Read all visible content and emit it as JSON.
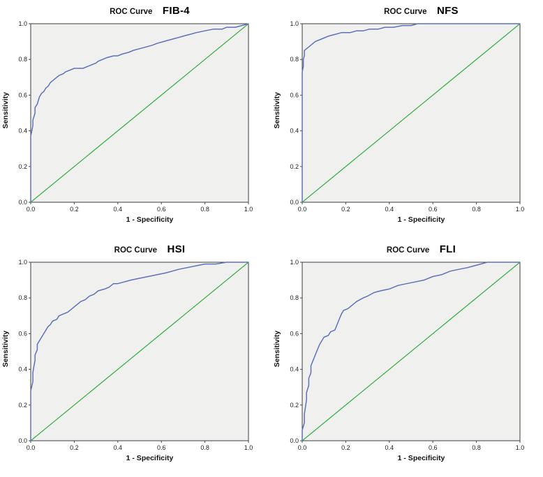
{
  "chart_data": [
    {
      "type": "line",
      "panel": "top-left",
      "title": "ROC Curve",
      "annotation": "FIB-4",
      "xlabel": "1 - Specificity",
      "ylabel": "Sensitivity",
      "xlim": [
        0,
        1
      ],
      "ylim": [
        0,
        1
      ],
      "xtick_labels": [
        "0.0",
        "0.2",
        "0.4",
        "0.6",
        "0.8",
        "1.0"
      ],
      "ytick_labels": [
        "0.0",
        "0.2",
        "0.4",
        "0.6",
        "0.8",
        "1.0"
      ],
      "grid": false,
      "legend": "none",
      "plot_bg": "#f0f0ee",
      "frame_color": "#3c3c3c",
      "series": [
        {
          "name": "ROC curve",
          "color": "#5d72b8",
          "width": 1.5,
          "points": [
            [
              0,
              0
            ],
            [
              0,
              0.37
            ],
            [
              0.005,
              0.4
            ],
            [
              0.01,
              0.43
            ],
            [
              0.01,
              0.46
            ],
            [
              0.015,
              0.48
            ],
            [
              0.02,
              0.5
            ],
            [
              0.02,
              0.53
            ],
            [
              0.03,
              0.55
            ],
            [
              0.035,
              0.57
            ],
            [
              0.04,
              0.59
            ],
            [
              0.05,
              0.61
            ],
            [
              0.06,
              0.62
            ],
            [
              0.07,
              0.64
            ],
            [
              0.08,
              0.65
            ],
            [
              0.09,
              0.67
            ],
            [
              0.1,
              0.68
            ],
            [
              0.12,
              0.7
            ],
            [
              0.13,
              0.71
            ],
            [
              0.15,
              0.72
            ],
            [
              0.16,
              0.73
            ],
            [
              0.18,
              0.74
            ],
            [
              0.2,
              0.75
            ],
            [
              0.24,
              0.75
            ],
            [
              0.26,
              0.76
            ],
            [
              0.28,
              0.77
            ],
            [
              0.3,
              0.78
            ],
            [
              0.31,
              0.79
            ],
            [
              0.33,
              0.8
            ],
            [
              0.35,
              0.81
            ],
            [
              0.38,
              0.82
            ],
            [
              0.4,
              0.82
            ],
            [
              0.42,
              0.83
            ],
            [
              0.45,
              0.84
            ],
            [
              0.47,
              0.85
            ],
            [
              0.5,
              0.86
            ],
            [
              0.53,
              0.87
            ],
            [
              0.56,
              0.88
            ],
            [
              0.58,
              0.89
            ],
            [
              0.61,
              0.9
            ],
            [
              0.64,
              0.91
            ],
            [
              0.67,
              0.92
            ],
            [
              0.7,
              0.93
            ],
            [
              0.73,
              0.94
            ],
            [
              0.76,
              0.95
            ],
            [
              0.8,
              0.96
            ],
            [
              0.84,
              0.97
            ],
            [
              0.88,
              0.97
            ],
            [
              0.9,
              0.98
            ],
            [
              0.94,
              0.98
            ],
            [
              0.97,
              0.99
            ],
            [
              1,
              1
            ]
          ]
        },
        {
          "name": "Reference line",
          "color": "#3faf4c",
          "width": 1.3,
          "points": [
            [
              0,
              0
            ],
            [
              1,
              1
            ]
          ]
        }
      ]
    },
    {
      "type": "line",
      "panel": "top-right",
      "title": "ROC Curve",
      "annotation": "NFS",
      "xlabel": "1 - Specificity",
      "ylabel": "Sensitivity",
      "xlim": [
        0,
        1
      ],
      "ylim": [
        0,
        1
      ],
      "xtick_labels": [
        "0.0",
        "0.2",
        "0.4",
        "0.6",
        "0.8",
        "1.0"
      ],
      "ytick_labels": [
        "0.0",
        "0.2",
        "0.4",
        "0.6",
        "0.8",
        "1.0"
      ],
      "grid": false,
      "legend": "none",
      "plot_bg": "#f0f0ee",
      "frame_color": "#3c3c3c",
      "series": [
        {
          "name": "ROC curve",
          "color": "#5d72b8",
          "width": 1.5,
          "points": [
            [
              0,
              0
            ],
            [
              0,
              0.73
            ],
            [
              0.005,
              0.76
            ],
            [
              0.005,
              0.8
            ],
            [
              0.01,
              0.82
            ],
            [
              0.01,
              0.85
            ],
            [
              0.02,
              0.86
            ],
            [
              0.03,
              0.87
            ],
            [
              0.04,
              0.88
            ],
            [
              0.05,
              0.89
            ],
            [
              0.06,
              0.9
            ],
            [
              0.08,
              0.91
            ],
            [
              0.1,
              0.92
            ],
            [
              0.12,
              0.93
            ],
            [
              0.15,
              0.94
            ],
            [
              0.18,
              0.95
            ],
            [
              0.22,
              0.95
            ],
            [
              0.25,
              0.96
            ],
            [
              0.28,
              0.96
            ],
            [
              0.31,
              0.97
            ],
            [
              0.35,
              0.97
            ],
            [
              0.38,
              0.98
            ],
            [
              0.42,
              0.98
            ],
            [
              0.46,
              0.99
            ],
            [
              0.5,
              0.99
            ],
            [
              0.53,
              1.0
            ],
            [
              0.7,
              1.0
            ],
            [
              0.85,
              1.0
            ],
            [
              1,
              1
            ]
          ]
        },
        {
          "name": "Reference line",
          "color": "#3faf4c",
          "width": 1.3,
          "points": [
            [
              0,
              0
            ],
            [
              1,
              1
            ]
          ]
        }
      ]
    },
    {
      "type": "line",
      "panel": "bottom-left",
      "title": "ROC Curve",
      "annotation": "HSI",
      "xlabel": "1 - Specificity",
      "ylabel": "Sensitivity",
      "xlim": [
        0,
        1
      ],
      "ylim": [
        0,
        1
      ],
      "xtick_labels": [
        "0.0",
        "0.2",
        "0.4",
        "0.6",
        "0.8",
        "1.0"
      ],
      "ytick_labels": [
        "0.0",
        "0.2",
        "0.4",
        "0.6",
        "0.8",
        "1.0"
      ],
      "grid": false,
      "legend": "none",
      "plot_bg": "#f0f0ee",
      "frame_color": "#3c3c3c",
      "series": [
        {
          "name": "ROC curve",
          "color": "#5d72b8",
          "width": 1.5,
          "points": [
            [
              0,
              0
            ],
            [
              0,
              0.28
            ],
            [
              0.01,
              0.33
            ],
            [
              0.01,
              0.38
            ],
            [
              0.015,
              0.42
            ],
            [
              0.02,
              0.45
            ],
            [
              0.02,
              0.48
            ],
            [
              0.03,
              0.51
            ],
            [
              0.03,
              0.54
            ],
            [
              0.04,
              0.56
            ],
            [
              0.05,
              0.58
            ],
            [
              0.06,
              0.6
            ],
            [
              0.07,
              0.62
            ],
            [
              0.08,
              0.64
            ],
            [
              0.09,
              0.65
            ],
            [
              0.1,
              0.67
            ],
            [
              0.12,
              0.68
            ],
            [
              0.13,
              0.7
            ],
            [
              0.15,
              0.71
            ],
            [
              0.17,
              0.72
            ],
            [
              0.19,
              0.74
            ],
            [
              0.21,
              0.76
            ],
            [
              0.23,
              0.78
            ],
            [
              0.25,
              0.79
            ],
            [
              0.27,
              0.81
            ],
            [
              0.29,
              0.82
            ],
            [
              0.31,
              0.84
            ],
            [
              0.34,
              0.85
            ],
            [
              0.36,
              0.86
            ],
            [
              0.38,
              0.88
            ],
            [
              0.4,
              0.88
            ],
            [
              0.43,
              0.89
            ],
            [
              0.46,
              0.9
            ],
            [
              0.5,
              0.91
            ],
            [
              0.54,
              0.92
            ],
            [
              0.58,
              0.93
            ],
            [
              0.62,
              0.94
            ],
            [
              0.65,
              0.95
            ],
            [
              0.68,
              0.96
            ],
            [
              0.72,
              0.97
            ],
            [
              0.76,
              0.98
            ],
            [
              0.8,
              0.99
            ],
            [
              0.85,
              0.99
            ],
            [
              0.9,
              1.0
            ],
            [
              1,
              1
            ]
          ]
        },
        {
          "name": "Reference line",
          "color": "#3faf4c",
          "width": 1.3,
          "points": [
            [
              0,
              0
            ],
            [
              1,
              1
            ]
          ]
        }
      ]
    },
    {
      "type": "line",
      "panel": "bottom-right",
      "title": "ROC Curve",
      "annotation": "FLI",
      "xlabel": "1 - Specificity",
      "ylabel": "Sensitivity",
      "xlim": [
        0,
        1
      ],
      "ylim": [
        0,
        1
      ],
      "xtick_labels": [
        "0.0",
        "0.2",
        "0.4",
        "0.6",
        "0.8",
        "1.0"
      ],
      "ytick_labels": [
        "0.0",
        "0.2",
        "0.4",
        "0.6",
        "0.8",
        "1.0"
      ],
      "grid": false,
      "legend": "none",
      "plot_bg": "#f0f0ee",
      "frame_color": "#3c3c3c",
      "series": [
        {
          "name": "ROC curve",
          "color": "#5d72b8",
          "width": 1.5,
          "points": [
            [
              0,
              0
            ],
            [
              0,
              0.06
            ],
            [
              0.01,
              0.1
            ],
            [
              0.01,
              0.15
            ],
            [
              0.015,
              0.19
            ],
            [
              0.02,
              0.23
            ],
            [
              0.02,
              0.27
            ],
            [
              0.03,
              0.31
            ],
            [
              0.03,
              0.35
            ],
            [
              0.04,
              0.38
            ],
            [
              0.04,
              0.42
            ],
            [
              0.05,
              0.45
            ],
            [
              0.06,
              0.48
            ],
            [
              0.07,
              0.51
            ],
            [
              0.08,
              0.54
            ],
            [
              0.09,
              0.56
            ],
            [
              0.1,
              0.58
            ],
            [
              0.12,
              0.59
            ],
            [
              0.13,
              0.61
            ],
            [
              0.15,
              0.62
            ],
            [
              0.16,
              0.65
            ],
            [
              0.17,
              0.68
            ],
            [
              0.18,
              0.71
            ],
            [
              0.19,
              0.73
            ],
            [
              0.21,
              0.74
            ],
            [
              0.23,
              0.76
            ],
            [
              0.25,
              0.78
            ],
            [
              0.28,
              0.8
            ],
            [
              0.3,
              0.81
            ],
            [
              0.33,
              0.83
            ],
            [
              0.36,
              0.84
            ],
            [
              0.4,
              0.85
            ],
            [
              0.44,
              0.87
            ],
            [
              0.48,
              0.88
            ],
            [
              0.52,
              0.89
            ],
            [
              0.56,
              0.9
            ],
            [
              0.6,
              0.92
            ],
            [
              0.64,
              0.93
            ],
            [
              0.68,
              0.95
            ],
            [
              0.72,
              0.96
            ],
            [
              0.76,
              0.97
            ],
            [
              0.79,
              0.98
            ],
            [
              0.82,
              0.99
            ],
            [
              0.85,
              1.0
            ],
            [
              1,
              1
            ]
          ]
        },
        {
          "name": "Reference line",
          "color": "#3faf4c",
          "width": 1.3,
          "points": [
            [
              0,
              0
            ],
            [
              1,
              1
            ]
          ]
        }
      ]
    }
  ]
}
